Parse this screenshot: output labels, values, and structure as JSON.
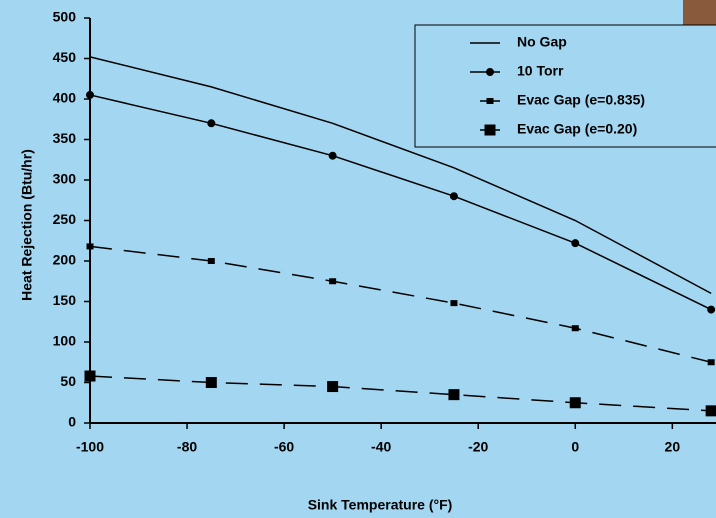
{
  "chart_data": {
    "type": "line",
    "x_label": "Sink Temperature (°F)",
    "y_label": "Heat Rejection (Btu/hr)",
    "x": [
      -100,
      -75,
      -50,
      -25,
      0,
      28
    ],
    "series": [
      {
        "name": "No Gap",
        "color": "#000000",
        "dash": false,
        "marker": "none",
        "values": [
          452,
          415,
          370,
          315,
          250,
          160
        ]
      },
      {
        "name": "10 Torr",
        "color": "#000000",
        "dash": false,
        "marker": "circle",
        "values": [
          405,
          370,
          330,
          280,
          222,
          140
        ]
      },
      {
        "name": "Evac Gap (e=0.835)",
        "color": "#000000",
        "dash": true,
        "marker": "cross",
        "values": [
          218,
          200,
          175,
          148,
          117,
          75
        ]
      },
      {
        "name": "Evac Gap (e=0.20)",
        "color": "#000000",
        "dash": true,
        "marker": "square",
        "values": [
          58,
          50,
          45,
          35,
          25,
          15
        ]
      }
    ],
    "xlim": [
      -100,
      29
    ],
    "xticks": [
      -100,
      -80,
      -60,
      -40,
      -20,
      0,
      20
    ],
    "ylim": [
      0,
      500
    ],
    "yticks": [
      0,
      50,
      100,
      150,
      200,
      250,
      300,
      350,
      400,
      450,
      500
    ],
    "legend": "top-right",
    "background": "#a3d6f0"
  }
}
